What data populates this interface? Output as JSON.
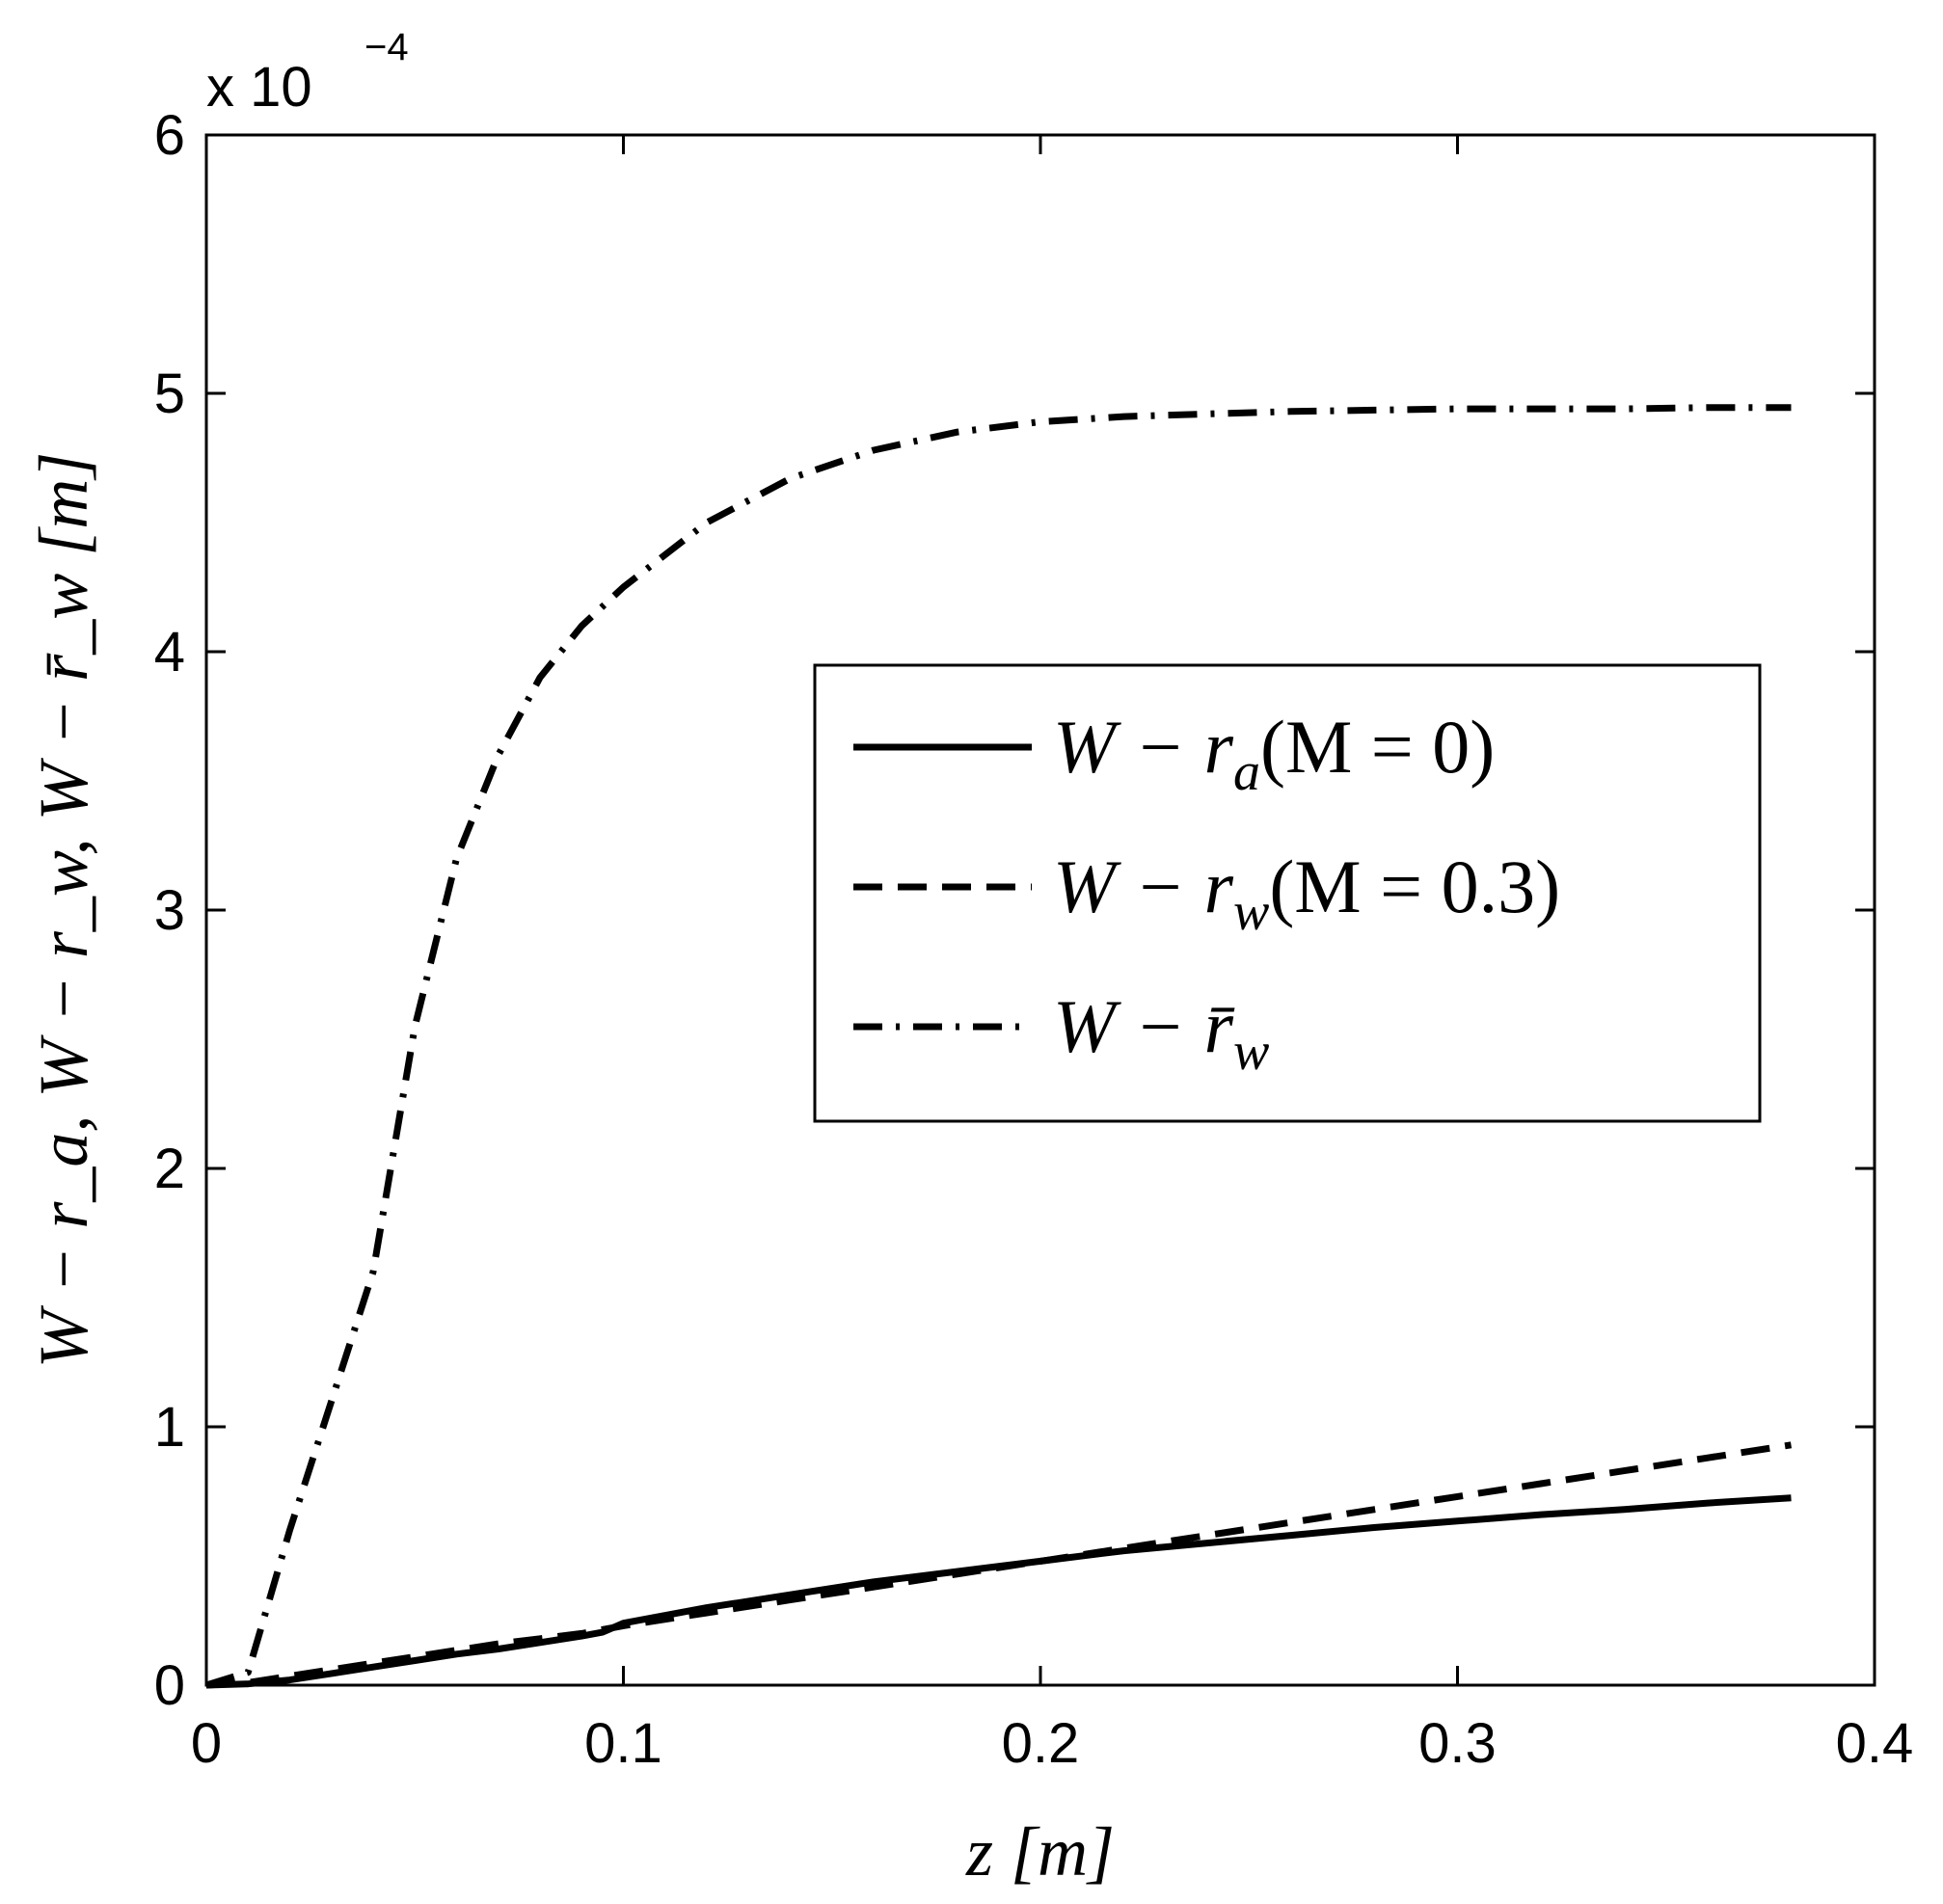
{
  "chart_data": {
    "type": "line",
    "xlabel": "z [m]",
    "ylabel": "W − r_a, W − r_w, W − r̄_w [m]",
    "xlim": [
      0,
      0.4
    ],
    "ylim": [
      0,
      6
    ],
    "y_multiplier_label": {
      "base": "x 10",
      "exponent": "−4"
    },
    "xticks": [
      0,
      0.1,
      0.2,
      0.3,
      0.4
    ],
    "xtick_labels": [
      "0",
      "0.1",
      "0.2",
      "0.3",
      "0.4"
    ],
    "yticks": [
      0,
      1,
      2,
      3,
      4,
      5,
      6
    ],
    "ytick_labels": [
      "0",
      "1",
      "2",
      "3",
      "4",
      "5",
      "6"
    ],
    "grid": false,
    "legend_placement": "center-right",
    "series": [
      {
        "name": "W − r_a(M = 0)",
        "legend_parts": {
          "main": "W − r",
          "sub": "a",
          "tail": "(M = 0)"
        },
        "style": "solid",
        "x": [
          0,
          0.01,
          0.02,
          0.03,
          0.04,
          0.05,
          0.06,
          0.07,
          0.08,
          0.09,
          0.095,
          0.1,
          0.12,
          0.14,
          0.16,
          0.18,
          0.2,
          0.22,
          0.24,
          0.26,
          0.28,
          0.3,
          0.32,
          0.34,
          0.36,
          0.38
        ],
        "y": [
          0,
          0.005,
          0.02,
          0.045,
          0.07,
          0.095,
          0.12,
          0.14,
          0.165,
          0.19,
          0.205,
          0.24,
          0.3,
          0.35,
          0.4,
          0.44,
          0.48,
          0.52,
          0.55,
          0.58,
          0.61,
          0.635,
          0.66,
          0.68,
          0.705,
          0.725
        ]
      },
      {
        "name": "W − r_w(M = 0.3)",
        "legend_parts": {
          "main": "W − r",
          "sub": "w",
          "tail": "(M = 0.3)"
        },
        "style": "dashed",
        "x": [
          0,
          0.01,
          0.02,
          0.03,
          0.04,
          0.05,
          0.06,
          0.07,
          0.08,
          0.09,
          0.1,
          0.12,
          0.14,
          0.16,
          0.18,
          0.2,
          0.22,
          0.24,
          0.26,
          0.28,
          0.3,
          0.32,
          0.34,
          0.36,
          0.38
        ],
        "y": [
          0,
          0.01,
          0.035,
          0.06,
          0.085,
          0.11,
          0.135,
          0.16,
          0.18,
          0.2,
          0.23,
          0.28,
          0.33,
          0.38,
          0.43,
          0.48,
          0.53,
          0.58,
          0.63,
          0.68,
          0.73,
          0.78,
          0.83,
          0.88,
          0.93
        ]
      },
      {
        "name": "W − r̄_w",
        "legend_parts": {
          "main": "W − r̄",
          "sub": "w",
          "tail": ""
        },
        "style": "dashdot",
        "x": [
          0,
          0.01,
          0.02,
          0.03,
          0.04,
          0.05,
          0.06,
          0.07,
          0.08,
          0.09,
          0.1,
          0.12,
          0.14,
          0.16,
          0.18,
          0.2,
          0.22,
          0.24,
          0.26,
          0.28,
          0.3,
          0.32,
          0.34,
          0.36,
          0.38
        ],
        "y": [
          0,
          0.05,
          0.6,
          1.1,
          1.6,
          2.55,
          3.2,
          3.6,
          3.9,
          4.1,
          4.25,
          4.5,
          4.67,
          4.78,
          4.85,
          4.89,
          4.91,
          4.92,
          4.93,
          4.935,
          4.94,
          4.94,
          4.94,
          4.945,
          4.945
        ]
      }
    ]
  }
}
